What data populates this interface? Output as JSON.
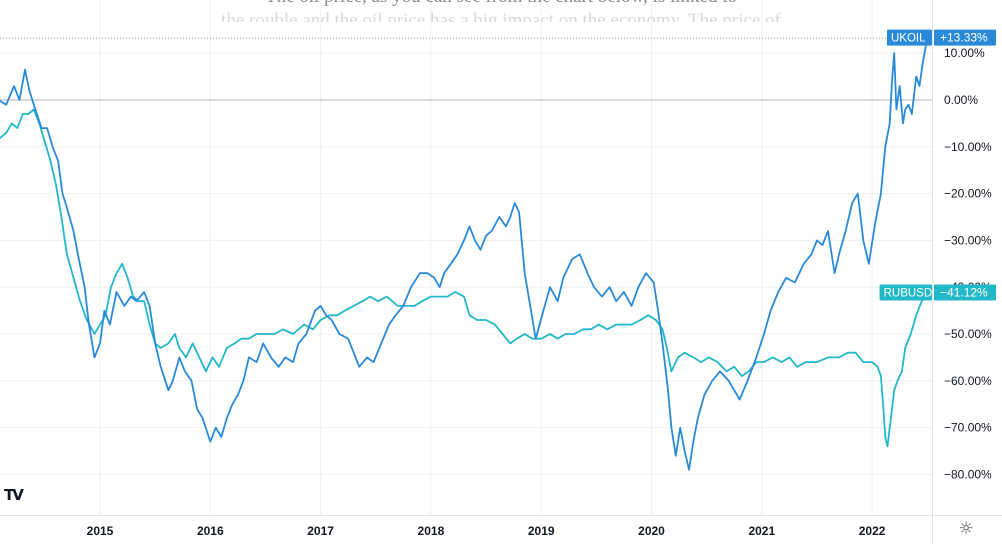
{
  "caption": {
    "line1": "The oil price, as you can see from the chart below, is linked to",
    "line2": "the rouble and the oil price has a big impact on the economy. The price of"
  },
  "logo": {
    "text": "TV",
    "icon": "tradingview-logo"
  },
  "settings": {
    "icon": "gear-icon",
    "glyph": "☼"
  },
  "colors": {
    "ukoil": "#2a8ad8",
    "rubusd": "#22b8c8",
    "grid": "#eef0f3",
    "axis_text": "#131722"
  },
  "chart_data": {
    "type": "line",
    "title": "",
    "xlabel": "",
    "ylabel": "",
    "x_ticks": [
      "2015",
      "2016",
      "2017",
      "2018",
      "2019",
      "2020",
      "2021",
      "2022"
    ],
    "y_ticks": [
      "10.00%",
      "0.00%",
      "−10.00%",
      "−20.00%",
      "−30.00%",
      "−40.00%",
      "−50.00%",
      "−60.00%",
      "−70.00%",
      "−80.00%"
    ],
    "y_tick_values": [
      10,
      0,
      -10,
      -20,
      -30,
      -40,
      -50,
      -60,
      -70,
      -80
    ],
    "ylim": [
      -88,
      13.5
    ],
    "xlim": [
      2014.0,
      2022.6
    ],
    "grid": true,
    "legend": "right-axis-badges",
    "series": [
      {
        "name": "UKOIL",
        "color": "#2a8ad8",
        "last_label": "+13.33%",
        "last_value": 13.33,
        "points": [
          [
            2014.0,
            2
          ],
          [
            2014.08,
            0
          ],
          [
            2014.15,
            -1
          ],
          [
            2014.22,
            3
          ],
          [
            2014.27,
            0
          ],
          [
            2014.32,
            6.5
          ],
          [
            2014.36,
            2
          ],
          [
            2014.4,
            -1
          ],
          [
            2014.47,
            -6
          ],
          [
            2014.52,
            -6
          ],
          [
            2014.57,
            -10
          ],
          [
            2014.62,
            -13
          ],
          [
            2014.66,
            -20
          ],
          [
            2014.7,
            -23
          ],
          [
            2014.76,
            -28
          ],
          [
            2014.8,
            -33
          ],
          [
            2014.86,
            -40
          ],
          [
            2014.9,
            -48
          ],
          [
            2014.95,
            -55
          ],
          [
            2015.0,
            -52
          ],
          [
            2015.04,
            -45
          ],
          [
            2015.09,
            -48
          ],
          [
            2015.15,
            -41
          ],
          [
            2015.22,
            -44
          ],
          [
            2015.28,
            -42
          ],
          [
            2015.33,
            -43
          ],
          [
            2015.4,
            -41
          ],
          [
            2015.45,
            -44
          ],
          [
            2015.5,
            -52
          ],
          [
            2015.55,
            -57
          ],
          [
            2015.62,
            -62
          ],
          [
            2015.66,
            -60
          ],
          [
            2015.72,
            -55
          ],
          [
            2015.77,
            -58
          ],
          [
            2015.83,
            -60
          ],
          [
            2015.88,
            -66
          ],
          [
            2015.93,
            -68
          ],
          [
            2016.0,
            -73
          ],
          [
            2016.05,
            -70
          ],
          [
            2016.1,
            -72
          ],
          [
            2016.15,
            -68
          ],
          [
            2016.2,
            -65
          ],
          [
            2016.25,
            -63
          ],
          [
            2016.3,
            -60
          ],
          [
            2016.35,
            -55
          ],
          [
            2016.42,
            -56
          ],
          [
            2016.48,
            -52
          ],
          [
            2016.55,
            -55
          ],
          [
            2016.62,
            -57
          ],
          [
            2016.68,
            -55
          ],
          [
            2016.75,
            -56
          ],
          [
            2016.8,
            -52
          ],
          [
            2016.87,
            -50
          ],
          [
            2016.95,
            -45
          ],
          [
            2017.0,
            -44
          ],
          [
            2017.05,
            -46
          ],
          [
            2017.1,
            -47
          ],
          [
            2017.17,
            -50
          ],
          [
            2017.25,
            -51
          ],
          [
            2017.3,
            -54
          ],
          [
            2017.35,
            -57
          ],
          [
            2017.42,
            -55
          ],
          [
            2017.48,
            -56
          ],
          [
            2017.55,
            -52
          ],
          [
            2017.62,
            -48
          ],
          [
            2017.68,
            -46
          ],
          [
            2017.75,
            -44
          ],
          [
            2017.82,
            -40
          ],
          [
            2017.9,
            -37
          ],
          [
            2017.97,
            -37
          ],
          [
            2018.03,
            -38
          ],
          [
            2018.08,
            -40
          ],
          [
            2018.12,
            -37
          ],
          [
            2018.18,
            -35
          ],
          [
            2018.24,
            -33
          ],
          [
            2018.3,
            -30
          ],
          [
            2018.35,
            -27
          ],
          [
            2018.4,
            -30
          ],
          [
            2018.45,
            -32
          ],
          [
            2018.5,
            -29
          ],
          [
            2018.55,
            -28
          ],
          [
            2018.62,
            -25
          ],
          [
            2018.68,
            -27
          ],
          [
            2018.72,
            -25
          ],
          [
            2018.76,
            -22
          ],
          [
            2018.8,
            -24
          ],
          [
            2018.85,
            -37
          ],
          [
            2018.9,
            -44
          ],
          [
            2018.95,
            -51
          ],
          [
            2019.02,
            -45
          ],
          [
            2019.08,
            -40
          ],
          [
            2019.15,
            -43
          ],
          [
            2019.2,
            -38
          ],
          [
            2019.28,
            -34
          ],
          [
            2019.35,
            -33
          ],
          [
            2019.42,
            -37
          ],
          [
            2019.48,
            -40
          ],
          [
            2019.55,
            -42
          ],
          [
            2019.62,
            -40
          ],
          [
            2019.68,
            -43
          ],
          [
            2019.75,
            -41
          ],
          [
            2019.82,
            -44
          ],
          [
            2019.88,
            -40
          ],
          [
            2019.95,
            -37
          ],
          [
            2020.02,
            -39
          ],
          [
            2020.06,
            -45
          ],
          [
            2020.1,
            -52
          ],
          [
            2020.15,
            -62
          ],
          [
            2020.18,
            -70
          ],
          [
            2020.22,
            -76
          ],
          [
            2020.26,
            -70
          ],
          [
            2020.3,
            -75
          ],
          [
            2020.34,
            -79
          ],
          [
            2020.38,
            -73
          ],
          [
            2020.42,
            -68
          ],
          [
            2020.48,
            -63
          ],
          [
            2020.55,
            -60
          ],
          [
            2020.62,
            -58
          ],
          [
            2020.7,
            -60
          ],
          [
            2020.75,
            -62
          ],
          [
            2020.8,
            -64
          ],
          [
            2020.87,
            -60
          ],
          [
            2020.95,
            -55
          ],
          [
            2021.02,
            -50
          ],
          [
            2021.08,
            -45
          ],
          [
            2021.15,
            -41
          ],
          [
            2021.22,
            -38
          ],
          [
            2021.3,
            -39
          ],
          [
            2021.38,
            -35
          ],
          [
            2021.45,
            -33
          ],
          [
            2021.5,
            -30
          ],
          [
            2021.55,
            -31
          ],
          [
            2021.6,
            -28
          ],
          [
            2021.66,
            -37
          ],
          [
            2021.7,
            -33
          ],
          [
            2021.76,
            -28
          ],
          [
            2021.82,
            -22
          ],
          [
            2021.87,
            -20
          ],
          [
            2021.92,
            -30
          ],
          [
            2021.97,
            -35
          ],
          [
            2022.03,
            -26
          ],
          [
            2022.08,
            -20
          ],
          [
            2022.12,
            -10
          ],
          [
            2022.16,
            -5
          ],
          [
            2022.18,
            4
          ],
          [
            2022.2,
            10
          ],
          [
            2022.22,
            -2
          ],
          [
            2022.25,
            3
          ],
          [
            2022.28,
            -5
          ],
          [
            2022.3,
            -2
          ],
          [
            2022.33,
            -1
          ],
          [
            2022.36,
            -3
          ],
          [
            2022.4,
            5
          ],
          [
            2022.43,
            3
          ],
          [
            2022.46,
            8
          ],
          [
            2022.5,
            13.3
          ]
        ]
      },
      {
        "name": "RUBUSD",
        "color": "#22b8c8",
        "last_label": "−41.12%",
        "last_value": -41.12,
        "points": [
          [
            2014.0,
            -7
          ],
          [
            2014.05,
            -9
          ],
          [
            2014.1,
            -8
          ],
          [
            2014.15,
            -7
          ],
          [
            2014.2,
            -5
          ],
          [
            2014.25,
            -6
          ],
          [
            2014.3,
            -3
          ],
          [
            2014.35,
            -3
          ],
          [
            2014.4,
            -2
          ],
          [
            2014.45,
            -5
          ],
          [
            2014.5,
            -9
          ],
          [
            2014.55,
            -13
          ],
          [
            2014.6,
            -18
          ],
          [
            2014.65,
            -25
          ],
          [
            2014.7,
            -33
          ],
          [
            2014.76,
            -38
          ],
          [
            2014.82,
            -43
          ],
          [
            2014.88,
            -47
          ],
          [
            2014.95,
            -50
          ],
          [
            2015.0,
            -48
          ],
          [
            2015.05,
            -46
          ],
          [
            2015.1,
            -40
          ],
          [
            2015.15,
            -37
          ],
          [
            2015.2,
            -35
          ],
          [
            2015.25,
            -38
          ],
          [
            2015.3,
            -42
          ],
          [
            2015.35,
            -43
          ],
          [
            2015.4,
            -43
          ],
          [
            2015.45,
            -48
          ],
          [
            2015.5,
            -52
          ],
          [
            2015.55,
            -53
          ],
          [
            2015.62,
            -52
          ],
          [
            2015.68,
            -50
          ],
          [
            2015.72,
            -53
          ],
          [
            2015.78,
            -55
          ],
          [
            2015.84,
            -52
          ],
          [
            2015.9,
            -55
          ],
          [
            2015.96,
            -58
          ],
          [
            2016.02,
            -55
          ],
          [
            2016.08,
            -57
          ],
          [
            2016.15,
            -53
          ],
          [
            2016.22,
            -52
          ],
          [
            2016.28,
            -51
          ],
          [
            2016.35,
            -51
          ],
          [
            2016.42,
            -50
          ],
          [
            2016.5,
            -50
          ],
          [
            2016.58,
            -50
          ],
          [
            2016.66,
            -49
          ],
          [
            2016.75,
            -50
          ],
          [
            2016.85,
            -48
          ],
          [
            2016.93,
            -49
          ],
          [
            2017.0,
            -47
          ],
          [
            2017.08,
            -46
          ],
          [
            2017.15,
            -46
          ],
          [
            2017.22,
            -45
          ],
          [
            2017.3,
            -44
          ],
          [
            2017.38,
            -43
          ],
          [
            2017.45,
            -42
          ],
          [
            2017.52,
            -43
          ],
          [
            2017.6,
            -42
          ],
          [
            2017.7,
            -44
          ],
          [
            2017.78,
            -44
          ],
          [
            2017.85,
            -44
          ],
          [
            2017.92,
            -43
          ],
          [
            2018.0,
            -42
          ],
          [
            2018.08,
            -42
          ],
          [
            2018.15,
            -42
          ],
          [
            2018.22,
            -41
          ],
          [
            2018.3,
            -42
          ],
          [
            2018.35,
            -46
          ],
          [
            2018.42,
            -47
          ],
          [
            2018.5,
            -47
          ],
          [
            2018.58,
            -48
          ],
          [
            2018.65,
            -50
          ],
          [
            2018.72,
            -52
          ],
          [
            2018.78,
            -51
          ],
          [
            2018.85,
            -50
          ],
          [
            2018.92,
            -51
          ],
          [
            2019.0,
            -51
          ],
          [
            2019.08,
            -50
          ],
          [
            2019.15,
            -51
          ],
          [
            2019.22,
            -50
          ],
          [
            2019.3,
            -50
          ],
          [
            2019.38,
            -49
          ],
          [
            2019.45,
            -49
          ],
          [
            2019.52,
            -48
          ],
          [
            2019.6,
            -49
          ],
          [
            2019.68,
            -48
          ],
          [
            2019.75,
            -48
          ],
          [
            2019.82,
            -48
          ],
          [
            2019.9,
            -47
          ],
          [
            2019.97,
            -46
          ],
          [
            2020.04,
            -47
          ],
          [
            2020.1,
            -49
          ],
          [
            2020.14,
            -53
          ],
          [
            2020.18,
            -58
          ],
          [
            2020.24,
            -55
          ],
          [
            2020.3,
            -54
          ],
          [
            2020.38,
            -55
          ],
          [
            2020.45,
            -56
          ],
          [
            2020.52,
            -55
          ],
          [
            2020.6,
            -56
          ],
          [
            2020.68,
            -58
          ],
          [
            2020.75,
            -57
          ],
          [
            2020.82,
            -59
          ],
          [
            2020.88,
            -58
          ],
          [
            2020.95,
            -56
          ],
          [
            2021.02,
            -56
          ],
          [
            2021.1,
            -55
          ],
          [
            2021.18,
            -56
          ],
          [
            2021.25,
            -55
          ],
          [
            2021.32,
            -57
          ],
          [
            2021.4,
            -56
          ],
          [
            2021.5,
            -56
          ],
          [
            2021.6,
            -55
          ],
          [
            2021.7,
            -55
          ],
          [
            2021.78,
            -54
          ],
          [
            2021.85,
            -54
          ],
          [
            2021.92,
            -56
          ],
          [
            2022.0,
            -56
          ],
          [
            2022.05,
            -57
          ],
          [
            2022.08,
            -59
          ],
          [
            2022.1,
            -65
          ],
          [
            2022.12,
            -72
          ],
          [
            2022.14,
            -74
          ],
          [
            2022.17,
            -68
          ],
          [
            2022.2,
            -62
          ],
          [
            2022.23,
            -60
          ],
          [
            2022.27,
            -58
          ],
          [
            2022.3,
            -53
          ],
          [
            2022.35,
            -50
          ],
          [
            2022.4,
            -46
          ],
          [
            2022.45,
            -43
          ],
          [
            2022.5,
            -41.1
          ]
        ]
      }
    ]
  }
}
